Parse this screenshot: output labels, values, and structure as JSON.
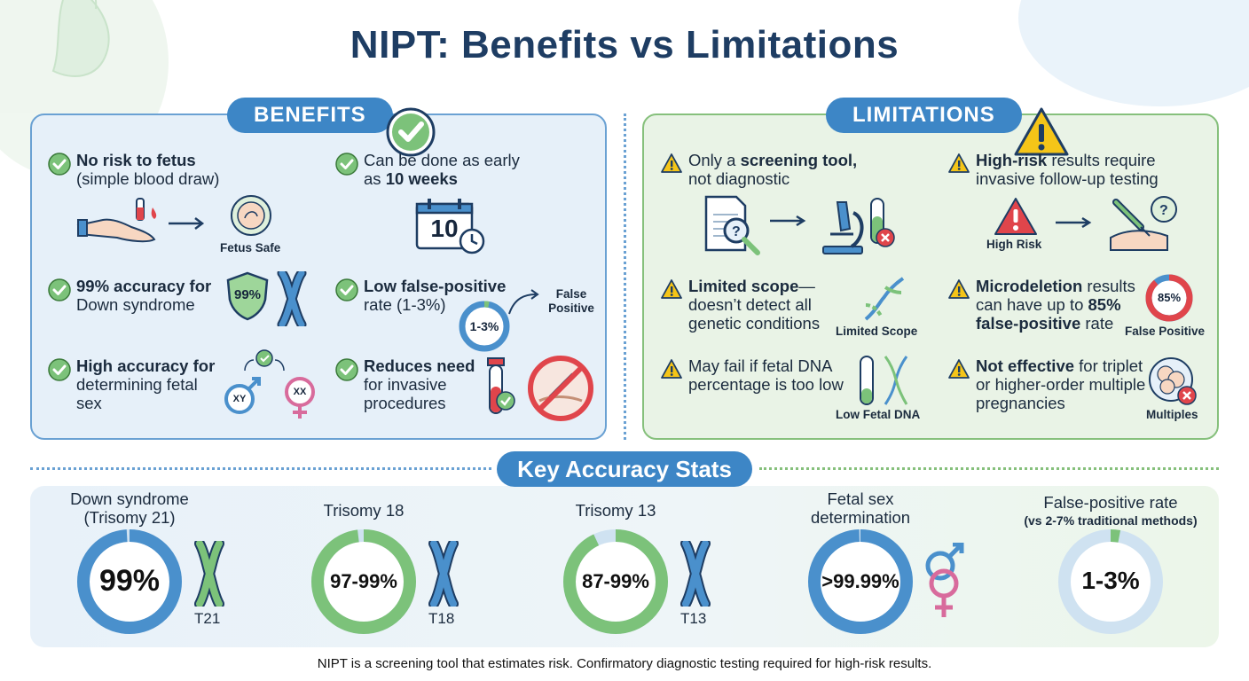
{
  "title": "NIPT: Benefits vs Limitations",
  "colors": {
    "blue": "#3d86c6",
    "green": "#7cc27a",
    "red": "#e0454b",
    "warn": "#f5c518",
    "navy": "#1e3d63"
  },
  "benefits": {
    "heading": "BENEFITS",
    "items": [
      {
        "bold": "No risk to fetus",
        "rest": "(simple blood draw)",
        "caption": "Fetus Safe"
      },
      {
        "pre": "Can be done as early as ",
        "bold": "10 weeks",
        "calendar": "10"
      },
      {
        "bold": "99% accuracy for",
        "rest": "Down syndrome",
        "shield": "99%"
      },
      {
        "bold": "Low false-positive",
        "rest": "rate (1-3%)",
        "ring": "1-3%",
        "caption": "False Positive"
      },
      {
        "bold": "High accuracy for",
        "rest": "determining fetal sex",
        "xy": "XY",
        "xx": "XX"
      },
      {
        "bold": "Reduces need",
        "rest": "for invasive procedures"
      }
    ]
  },
  "limitations": {
    "heading": "LIMITATIONS",
    "items": [
      {
        "pre": "Only a ",
        "bold": "screening tool,",
        "rest": "not diagnostic"
      },
      {
        "bold": "High-risk",
        "rest": " results require invasive follow-up testing",
        "caption": "High Risk"
      },
      {
        "bold": "Limited scope",
        "rest": "—doesn’t detect all genetic conditions",
        "caption": "Limited Scope"
      },
      {
        "bold": "Microdeletion",
        "rest": " results can have up to ",
        "bold2": "85% false-positive",
        "rest2": " rate",
        "ring": "85%",
        "caption": "False Positive"
      },
      {
        "rest": "May fail if fetal DNA percentage is too low",
        "caption": "Low Fetal DNA"
      },
      {
        "bold": "Not effective",
        "rest": " for triplet or higher-order multiple pregnancies",
        "caption": "Multiples"
      }
    ]
  },
  "stats": {
    "heading": "Key Accuracy Stats",
    "items": [
      {
        "label": "Down syndrome",
        "label2": "(Trisomy 21)",
        "value": "99%",
        "pct": 99,
        "color": "#4a90cc",
        "chrom": "T21"
      },
      {
        "label": "Trisomy 18",
        "label2": "",
        "value": "97-99%",
        "pct": 98,
        "color": "#7cc27a",
        "chrom": "T18"
      },
      {
        "label": "Trisomy 13",
        "label2": "",
        "value": "87-99%",
        "pct": 93,
        "color": "#7cc27a",
        "chrom": "T13"
      },
      {
        "label": "Fetal sex",
        "label2": "determination",
        "value": ">99.99%",
        "pct": 99.99,
        "color": "#4a90cc"
      },
      {
        "label": "False-positive rate",
        "label2": "(vs 2-7% traditional methods)",
        "value": "1-3%",
        "pct": 3,
        "color": "#7cc27a"
      }
    ]
  },
  "footer": "NIPT is a screening tool that estimates risk. Confirmatory diagnostic testing required for high-risk results."
}
